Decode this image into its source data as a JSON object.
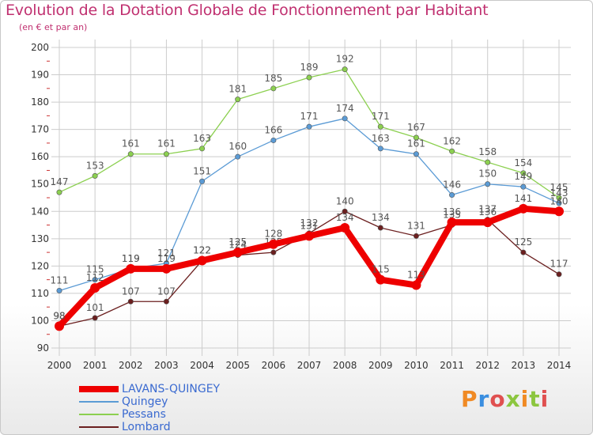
{
  "title": "Evolution de la Dotation Globale de Fonctionnement par Habitant",
  "subtitle": "(en € et par an)",
  "logo_text": "Proxiti",
  "colors": {
    "title": "#c03070",
    "grid": "#cccccc",
    "axis_tick": "#cc3333"
  },
  "chart_data": {
    "type": "line",
    "x": [
      "2000",
      "2001",
      "2002",
      "2003",
      "2004",
      "2005",
      "2006",
      "2007",
      "2008",
      "2009",
      "2010",
      "2011",
      "2012",
      "2013",
      "2014"
    ],
    "ylim": [
      90,
      200
    ],
    "yticks": [
      90,
      100,
      110,
      120,
      130,
      140,
      150,
      160,
      170,
      180,
      190,
      200
    ],
    "grid": true,
    "legend_position": "bottom-left",
    "series": [
      {
        "name": "Lombard",
        "color": "#6b1f1f",
        "values": [
          98,
          101,
          107,
          107,
          122,
          124,
          125,
          132,
          140,
          134,
          131,
          135,
          137,
          125,
          117
        ]
      },
      {
        "name": "Pessans",
        "color": "#8cd050",
        "values": [
          147,
          153,
          161,
          161,
          163,
          181,
          185,
          189,
          192,
          171,
          167,
          162,
          158,
          154,
          145
        ]
      },
      {
        "name": "Quingey",
        "color": "#5b9bd5",
        "values": [
          111,
          115,
          119,
          121,
          151,
          160,
          166,
          171,
          174,
          163,
          161,
          146,
          150,
          149,
          143
        ]
      },
      {
        "name": "LAVANS-QUINGEY",
        "color": "#ee0000",
        "values": [
          98,
          112,
          119,
          119,
          122,
          125,
          128,
          131,
          134,
          115,
          113,
          136,
          136,
          141,
          140
        ]
      }
    ]
  },
  "legend": [
    {
      "name": "LAVANS-QUINGEY",
      "color": "#ee0000"
    },
    {
      "name": "Quingey",
      "color": "#5b9bd5"
    },
    {
      "name": "Pessans",
      "color": "#8cd050"
    },
    {
      "name": "Lombard",
      "color": "#6b1f1f"
    }
  ]
}
